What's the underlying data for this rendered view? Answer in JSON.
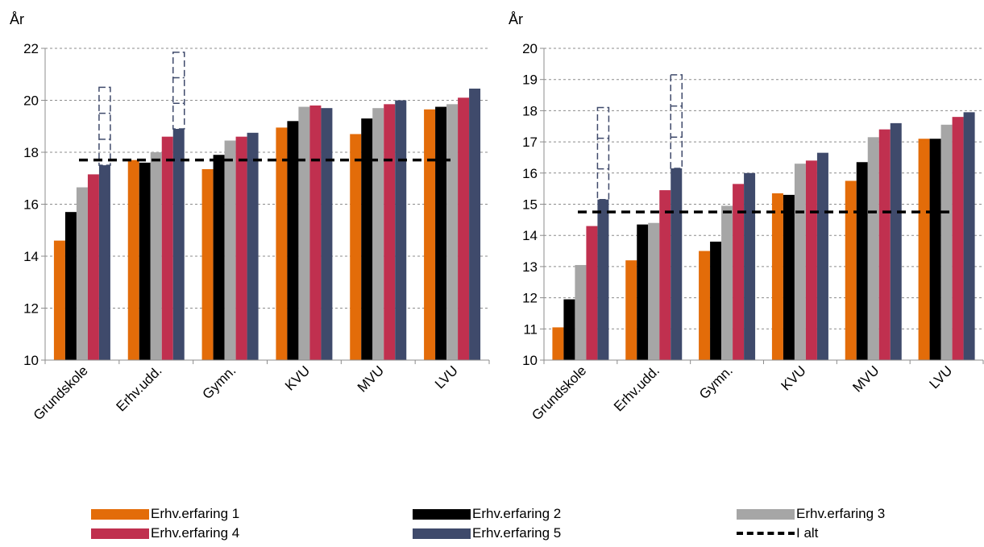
{
  "legend": {
    "items": [
      {
        "label": "Erhv.erfaring 1",
        "color": "#e36c09",
        "kind": "bar"
      },
      {
        "label": "Erhv.erfaring 2",
        "color": "#000000",
        "kind": "bar"
      },
      {
        "label": "Erhv.erfaring 3",
        "color": "#a6a6a6",
        "kind": "bar"
      },
      {
        "label": "Erhv.erfaring 4",
        "color": "#c0304f",
        "kind": "bar"
      },
      {
        "label": "Erhv.erfaring 5",
        "color": "#3f4a6b",
        "kind": "bar"
      },
      {
        "label": "I alt",
        "color": "#000000",
        "kind": "dashed-line"
      }
    ]
  },
  "chart_data": [
    {
      "type": "bar",
      "ylabel": "År",
      "ylim": [
        10,
        22
      ],
      "yticks": [
        10,
        12,
        14,
        16,
        18,
        20,
        22
      ],
      "grid": "horizontal dashed",
      "categories": [
        "Grundskole",
        "Erhv.udd.",
        "Gymn.",
        "KVU",
        "MVU",
        "LVU"
      ],
      "series": [
        {
          "name": "Erhv.erfaring 1",
          "values": [
            14.6,
            17.7,
            17.35,
            18.95,
            18.7,
            19.65
          ]
        },
        {
          "name": "Erhv.erfaring 2",
          "values": [
            15.7,
            17.6,
            17.9,
            19.2,
            19.3,
            19.75
          ]
        },
        {
          "name": "Erhv.erfaring 3",
          "values": [
            16.65,
            18.0,
            18.45,
            19.75,
            19.7,
            19.85
          ]
        },
        {
          "name": "Erhv.erfaring 4",
          "values": [
            17.15,
            18.6,
            18.6,
            19.8,
            19.85,
            20.1
          ]
        },
        {
          "name": "Erhv.erfaring 5",
          "values": [
            17.5,
            18.9,
            18.75,
            19.7,
            20.0,
            20.45
          ]
        }
      ],
      "reference_line": {
        "name": "I alt",
        "value": 17.7
      },
      "extensions": [
        {
          "category": "Grundskole",
          "from": 17.5,
          "to": 20.5
        },
        {
          "category": "Erhv.udd.",
          "from": 18.9,
          "to": 21.85
        }
      ]
    },
    {
      "type": "bar",
      "ylabel": "År",
      "ylim": [
        10,
        20
      ],
      "yticks": [
        10,
        11,
        12,
        13,
        14,
        15,
        16,
        17,
        18,
        19,
        20
      ],
      "grid": "horizontal dashed",
      "categories": [
        "Grundskole",
        "Erhv.udd.",
        "Gymn.",
        "KVU",
        "MVU",
        "LVU"
      ],
      "series": [
        {
          "name": "Erhv.erfaring 1",
          "values": [
            11.05,
            13.2,
            13.5,
            15.35,
            15.75,
            17.1
          ]
        },
        {
          "name": "Erhv.erfaring 2",
          "values": [
            11.95,
            14.35,
            13.8,
            15.3,
            16.35,
            17.1
          ]
        },
        {
          "name": "Erhv.erfaring 3",
          "values": [
            13.05,
            14.4,
            14.95,
            16.3,
            17.15,
            17.55
          ]
        },
        {
          "name": "Erhv.erfaring 4",
          "values": [
            14.3,
            15.45,
            15.65,
            16.4,
            17.4,
            17.8
          ]
        },
        {
          "name": "Erhv.erfaring 5",
          "values": [
            15.15,
            16.15,
            16.0,
            16.65,
            17.6,
            17.95
          ]
        }
      ],
      "reference_line": {
        "name": "I alt",
        "value": 14.75
      },
      "extensions": [
        {
          "category": "Grundskole",
          "from": 15.15,
          "to": 18.1
        },
        {
          "category": "Erhv.udd.",
          "from": 16.15,
          "to": 19.15
        }
      ]
    }
  ]
}
